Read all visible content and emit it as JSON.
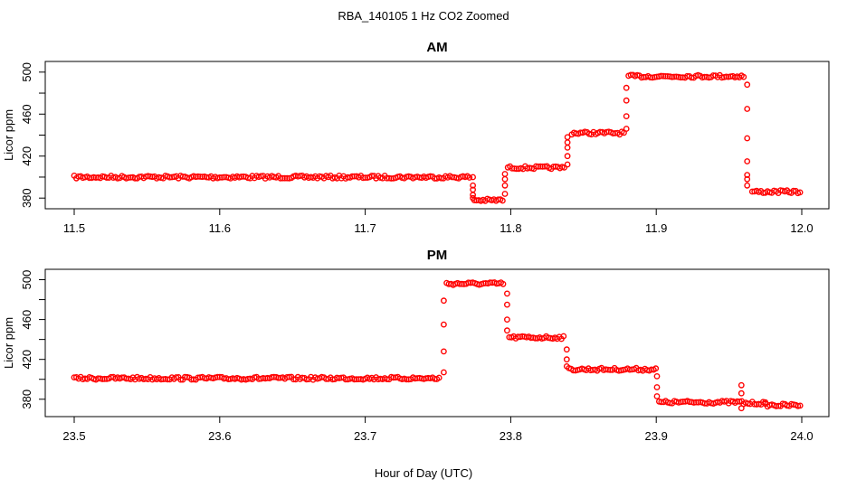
{
  "figure": {
    "title": "RBA_140105  1 Hz CO2 Zoomed",
    "xlabel": "Hour of Day (UTC)"
  },
  "chart_data": [
    {
      "type": "scatter",
      "title": "AM",
      "xlabel": "",
      "ylabel": "Licor ppm",
      "xlim": [
        11.5,
        12.0
      ],
      "ylim": [
        375,
        505
      ],
      "xticks": [
        "11.5",
        "11.6",
        "11.7",
        "11.8",
        "11.9",
        "12.0"
      ],
      "yticks": [
        "380",
        "420",
        "460",
        "500"
      ],
      "grid": false,
      "marker_color": "#ff0000",
      "segments": [
        {
          "x": [
            11.5,
            11.773
          ],
          "y": 400
        },
        {
          "x": [
            11.775,
            11.795
          ],
          "y": 378
        },
        {
          "x": [
            11.798,
            11.838
          ],
          "y": 409
        },
        {
          "x": [
            11.842,
            11.878
          ],
          "y": 442
        },
        {
          "x": [
            11.881,
            11.961
          ],
          "y": 496
        },
        {
          "x": [
            11.966,
            12.0
          ],
          "y": 386
        }
      ],
      "transitions": [
        {
          "x": 11.774,
          "y": [
            400,
            380,
            383,
            388,
            392
          ]
        },
        {
          "x": 11.796,
          "y": [
            384,
            392,
            398,
            403
          ]
        },
        {
          "x": 11.839,
          "y": [
            412,
            420,
            428,
            433,
            438
          ]
        },
        {
          "x": 11.8795,
          "y": [
            446,
            458,
            473,
            485
          ]
        },
        {
          "x": 11.9625,
          "y": [
            488,
            465,
            437,
            415,
            402,
            398,
            392
          ]
        }
      ]
    },
    {
      "type": "scatter",
      "title": "PM",
      "xlabel": "Hour of Day (UTC)",
      "ylabel": "Licor ppm",
      "xlim": [
        23.5,
        24.0
      ],
      "ylim": [
        368,
        505
      ],
      "xticks": [
        "23.5",
        "23.6",
        "23.7",
        "23.8",
        "23.9",
        "24.0"
      ],
      "yticks": [
        "380",
        "420",
        "460",
        "500"
      ],
      "grid": false,
      "marker_color": "#ff0000",
      "segments": [
        {
          "x": [
            23.5,
            23.752
          ],
          "y": 401
        },
        {
          "x": [
            23.756,
            23.796
          ],
          "y": 496
        },
        {
          "x": [
            23.799,
            23.837
          ],
          "y": 442
        },
        {
          "x": [
            23.84,
            23.9
          ],
          "y": 410
        },
        {
          "x": [
            23.902,
            23.96
          ],
          "y": 377
        },
        {
          "x": [
            23.96,
            23.975
          ],
          "y": 376
        },
        {
          "x": [
            23.975,
            24.0
          ],
          "y": 374
        }
      ],
      "transitions": [
        {
          "x": 23.754,
          "y": [
            407,
            428,
            455,
            479
          ]
        },
        {
          "x": 23.7975,
          "y": [
            486,
            475,
            460,
            449
          ]
        },
        {
          "x": 23.8385,
          "y": [
            430,
            420,
            413
          ]
        },
        {
          "x": 23.9005,
          "y": [
            403,
            392,
            383
          ]
        },
        {
          "x": 23.9585,
          "y": [
            371,
            386,
            394
          ]
        }
      ]
    }
  ]
}
